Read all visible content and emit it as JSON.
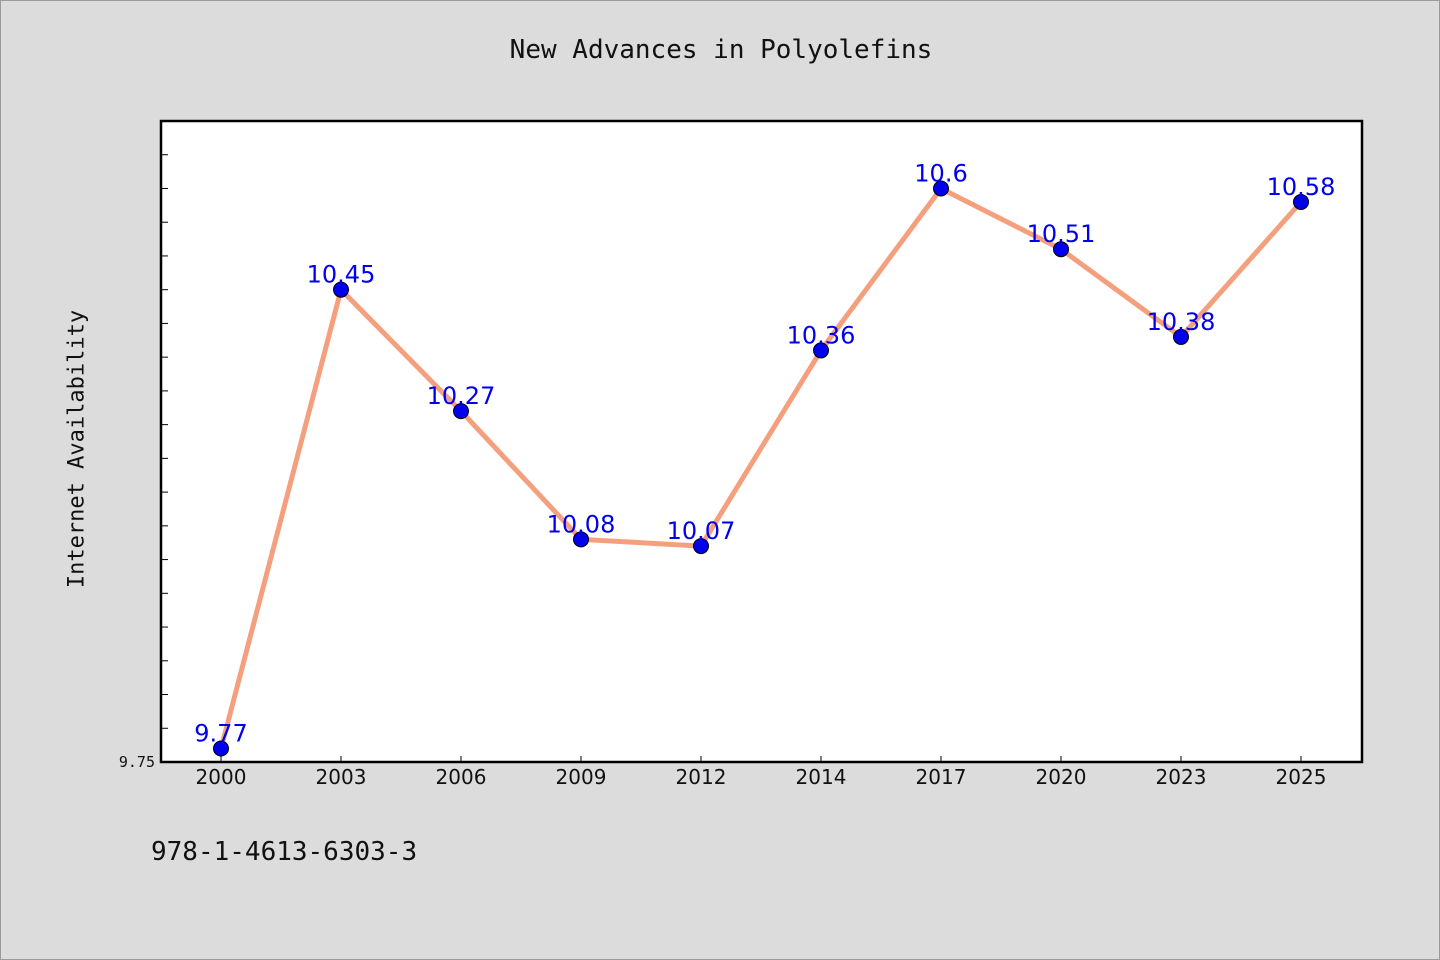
{
  "chart_data": {
    "type": "line",
    "title": "New Advances in Polyolefins",
    "xlabel": "",
    "ylabel": "Internet Availability",
    "categories": [
      "2000",
      "2003",
      "2006",
      "2009",
      "2012",
      "2014",
      "2017",
      "2020",
      "2023",
      "2025"
    ],
    "series": [
      {
        "values": [
          9.77,
          10.45,
          10.27,
          10.08,
          10.07,
          10.36,
          10.6,
          10.51,
          10.38,
          10.58
        ]
      }
    ],
    "data_labels": [
      "9.77",
      "10.45",
      "10.27",
      "10.08",
      "10.07",
      "10.36",
      "10.6",
      "10.51",
      "10.38",
      "10.58"
    ],
    "y_tick_labels": [
      "9.75"
    ],
    "ylim": [
      9.75,
      10.7
    ],
    "grid": false,
    "legend": "none"
  },
  "footer_text": "978-1-4613-6303-3",
  "colors": {
    "line": "#f4a07e",
    "marker": "#0000ee",
    "data_label": "#0000ee",
    "frame": "#000000",
    "plot_background": "#ffffff",
    "page_background": "#dcdcdc"
  }
}
